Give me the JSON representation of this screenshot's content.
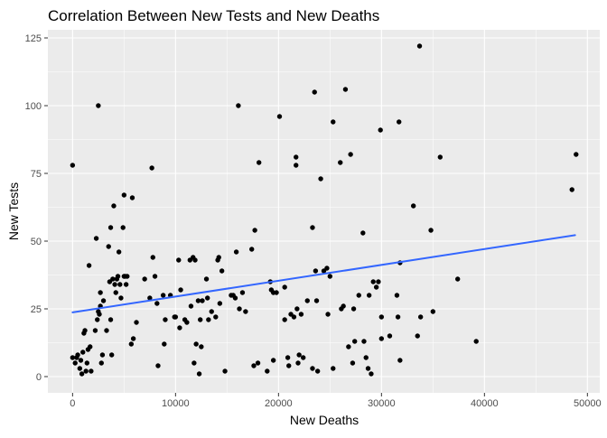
{
  "chart_data": {
    "type": "scatter",
    "title": "Correlation Between New Tests and New Deaths",
    "xlabel": "New Deaths",
    "ylabel": "New Tests",
    "xlim": [
      -2400,
      51200
    ],
    "ylim": [
      -6,
      128
    ],
    "x_ticks": [
      0,
      10000,
      20000,
      30000,
      40000,
      50000
    ],
    "x_tick_labels": [
      "0",
      "10000",
      "20000",
      "30000",
      "40000",
      "50000"
    ],
    "y_ticks": [
      0,
      25,
      50,
      75,
      100,
      125
    ],
    "y_tick_labels": [
      "0",
      "25",
      "50",
      "75",
      "100",
      "125"
    ],
    "grid": true,
    "legend": "none",
    "colors": {
      "panel_bg": "#ebebeb",
      "grid": "#ffffff",
      "point": "#000000",
      "trend": "#3366ff"
    },
    "trend_line": {
      "x": [
        0,
        48800
      ],
      "y": [
        23.7,
        52.2
      ]
    },
    "points": [
      [
        0,
        78
      ],
      [
        0,
        7
      ],
      [
        250,
        5
      ],
      [
        400,
        7
      ],
      [
        500,
        8
      ],
      [
        700,
        3
      ],
      [
        800,
        6
      ],
      [
        900,
        1
      ],
      [
        1000,
        9
      ],
      [
        1100,
        16
      ],
      [
        1200,
        17
      ],
      [
        1300,
        2
      ],
      [
        1400,
        5
      ],
      [
        1500,
        10
      ],
      [
        1600,
        41
      ],
      [
        1700,
        11
      ],
      [
        1800,
        2
      ],
      [
        2200,
        17
      ],
      [
        2300,
        51
      ],
      [
        2400,
        21
      ],
      [
        2500,
        100
      ],
      [
        2500,
        24
      ],
      [
        2600,
        23
      ],
      [
        2700,
        26
      ],
      [
        2700,
        31
      ],
      [
        2800,
        5
      ],
      [
        2900,
        8
      ],
      [
        3000,
        28
      ],
      [
        3300,
        17
      ],
      [
        3500,
        48
      ],
      [
        3600,
        35
      ],
      [
        3700,
        55
      ],
      [
        3700,
        21
      ],
      [
        3800,
        8
      ],
      [
        3900,
        36
      ],
      [
        4000,
        63
      ],
      [
        4100,
        34
      ],
      [
        4200,
        31
      ],
      [
        4300,
        36
      ],
      [
        4400,
        37
      ],
      [
        4500,
        46
      ],
      [
        4600,
        34
      ],
      [
        4700,
        29
      ],
      [
        4900,
        55
      ],
      [
        5000,
        67
      ],
      [
        5000,
        37
      ],
      [
        5100,
        37
      ],
      [
        5200,
        34
      ],
      [
        5300,
        37
      ],
      [
        5700,
        12
      ],
      [
        5800,
        66
      ],
      [
        5900,
        14
      ],
      [
        6200,
        20
      ],
      [
        7000,
        36
      ],
      [
        7500,
        29
      ],
      [
        7700,
        77
      ],
      [
        7800,
        44
      ],
      [
        8000,
        37
      ],
      [
        8200,
        27
      ],
      [
        8300,
        4
      ],
      [
        8800,
        30
      ],
      [
        8900,
        12
      ],
      [
        9000,
        21
      ],
      [
        9500,
        30
      ],
      [
        9900,
        22
      ],
      [
        10000,
        22
      ],
      [
        10300,
        43
      ],
      [
        10400,
        18
      ],
      [
        10500,
        32
      ],
      [
        10900,
        21
      ],
      [
        11100,
        20
      ],
      [
        11400,
        43
      ],
      [
        11500,
        26
      ],
      [
        11700,
        44
      ],
      [
        11800,
        5
      ],
      [
        11900,
        43
      ],
      [
        12000,
        12
      ],
      [
        12200,
        28
      ],
      [
        12300,
        1
      ],
      [
        12400,
        21
      ],
      [
        12500,
        11
      ],
      [
        12600,
        28
      ],
      [
        13000,
        36
      ],
      [
        13100,
        29
      ],
      [
        13200,
        21
      ],
      [
        13500,
        24
      ],
      [
        13900,
        22
      ],
      [
        14100,
        43
      ],
      [
        14200,
        44
      ],
      [
        14300,
        27
      ],
      [
        14500,
        39
      ],
      [
        14800,
        2
      ],
      [
        15400,
        30
      ],
      [
        15600,
        30
      ],
      [
        15800,
        29
      ],
      [
        15900,
        46
      ],
      [
        16100,
        100
      ],
      [
        16200,
        25
      ],
      [
        16500,
        31
      ],
      [
        16800,
        24
      ],
      [
        17400,
        47
      ],
      [
        17600,
        4
      ],
      [
        17700,
        54
      ],
      [
        18000,
        5
      ],
      [
        18100,
        79
      ],
      [
        18900,
        2
      ],
      [
        19200,
        35
      ],
      [
        19300,
        32
      ],
      [
        19500,
        6
      ],
      [
        19500,
        31
      ],
      [
        19800,
        31
      ],
      [
        20100,
        96
      ],
      [
        20600,
        33
      ],
      [
        20600,
        21
      ],
      [
        20900,
        7
      ],
      [
        21000,
        4
      ],
      [
        21200,
        23
      ],
      [
        21500,
        22
      ],
      [
        21700,
        81
      ],
      [
        21700,
        78
      ],
      [
        21800,
        25
      ],
      [
        21900,
        5
      ],
      [
        22000,
        8
      ],
      [
        22200,
        23
      ],
      [
        22400,
        7
      ],
      [
        22800,
        28
      ],
      [
        23300,
        55
      ],
      [
        23300,
        3
      ],
      [
        23500,
        105
      ],
      [
        23600,
        39
      ],
      [
        23700,
        28
      ],
      [
        23800,
        2
      ],
      [
        24100,
        73
      ],
      [
        24400,
        39
      ],
      [
        24700,
        40
      ],
      [
        24800,
        23
      ],
      [
        25000,
        37
      ],
      [
        25300,
        94
      ],
      [
        25300,
        3
      ],
      [
        26000,
        79
      ],
      [
        26100,
        25
      ],
      [
        26300,
        26
      ],
      [
        26500,
        106
      ],
      [
        26800,
        11
      ],
      [
        27000,
        82
      ],
      [
        27200,
        5
      ],
      [
        27300,
        25
      ],
      [
        27400,
        13
      ],
      [
        27800,
        30
      ],
      [
        28200,
        53
      ],
      [
        28300,
        13
      ],
      [
        28500,
        7
      ],
      [
        28700,
        3
      ],
      [
        28800,
        30
      ],
      [
        29000,
        1
      ],
      [
        29200,
        35
      ],
      [
        29500,
        33
      ],
      [
        29700,
        35
      ],
      [
        29900,
        91
      ],
      [
        30000,
        14
      ],
      [
        30000,
        22
      ],
      [
        30800,
        15
      ],
      [
        31500,
        30
      ],
      [
        31600,
        22
      ],
      [
        31700,
        94
      ],
      [
        31800,
        42
      ],
      [
        31800,
        6
      ],
      [
        33100,
        63
      ],
      [
        33500,
        15
      ],
      [
        33700,
        122
      ],
      [
        33800,
        22
      ],
      [
        34800,
        54
      ],
      [
        35000,
        24
      ],
      [
        35700,
        81
      ],
      [
        37400,
        36
      ],
      [
        39200,
        13
      ],
      [
        48500,
        69
      ],
      [
        48900,
        82
      ]
    ]
  }
}
